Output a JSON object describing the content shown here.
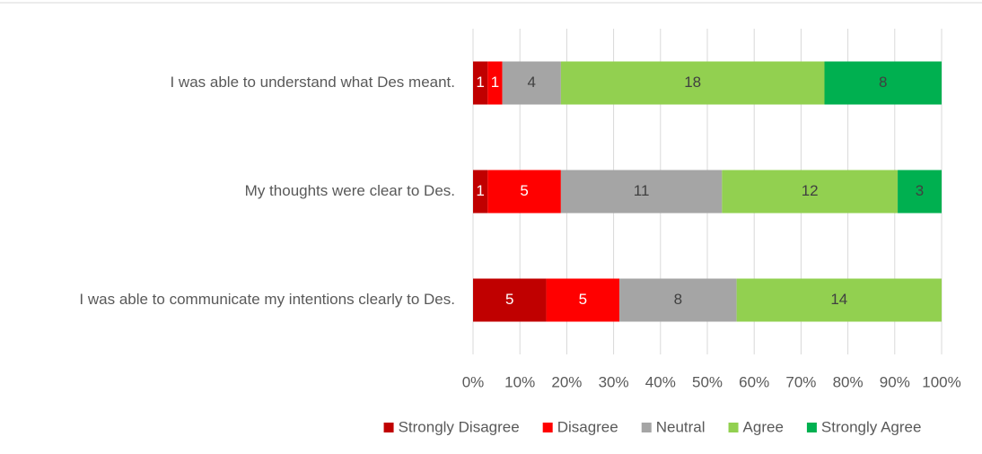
{
  "chart_data": {
    "type": "bar",
    "orientation": "horizontal",
    "stacking": "percent",
    "categories": [
      "I was able to understand what Des meant.",
      "My thoughts were clear to Des.",
      "I was able to communicate my intentions clearly to Des."
    ],
    "series": [
      {
        "name": "Strongly Disagree",
        "color": "#c00000",
        "label_color": "#ffffff",
        "values": [
          1,
          1,
          5
        ]
      },
      {
        "name": "Disagree",
        "color": "#ff0000",
        "label_color": "#ffffff",
        "values": [
          1,
          5,
          5
        ]
      },
      {
        "name": "Neutral",
        "color": "#a5a5a5",
        "label_color": "#404040",
        "values": [
          4,
          11,
          8
        ]
      },
      {
        "name": "Agree",
        "color": "#92d050",
        "label_color": "#404040",
        "values": [
          18,
          12,
          14
        ]
      },
      {
        "name": "Strongly Agree",
        "color": "#00b050",
        "label_color": "#404040",
        "values": [
          8,
          3,
          0
        ]
      }
    ],
    "xlim": [
      0,
      100
    ],
    "xticks": [
      {
        "value": 0,
        "label": "0%"
      },
      {
        "value": 10,
        "label": "10%"
      },
      {
        "value": 20,
        "label": "20%"
      },
      {
        "value": 30,
        "label": "30%"
      },
      {
        "value": 40,
        "label": "40%"
      },
      {
        "value": 50,
        "label": "50%"
      },
      {
        "value": 60,
        "label": "60%"
      },
      {
        "value": 70,
        "label": "70%"
      },
      {
        "value": 80,
        "label": "80%"
      },
      {
        "value": 90,
        "label": "90%"
      },
      {
        "value": 100,
        "label": "100%"
      }
    ],
    "grid": true,
    "legend": "bottom"
  }
}
